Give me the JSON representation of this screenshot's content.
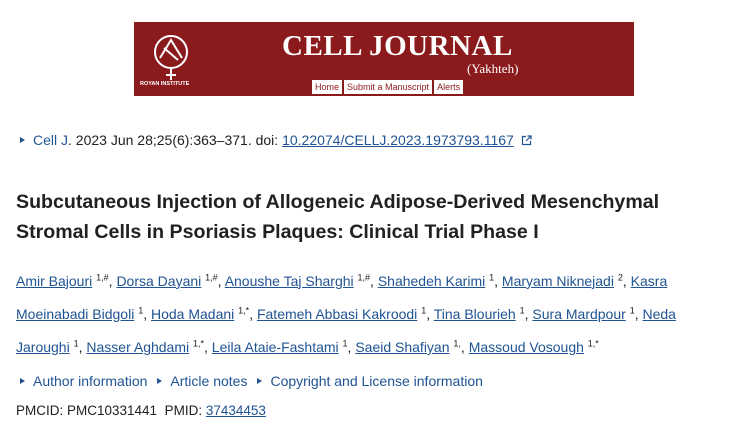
{
  "banner": {
    "institute": "ROYAN INSTITUTE",
    "title": "CELL JOURNAL",
    "subtitle": "(Yakhteh)",
    "nav": [
      "Home",
      "Submit a Manuscript",
      "Alerts"
    ]
  },
  "citation": {
    "journal": "Cell J",
    "details": ". 2023 Jun 28;25(6):363–371. doi: ",
    "doi": "10.22074/CELLJ.2023.1973793.1167"
  },
  "title": "Subcutaneous Injection of Allogeneic Adipose-Derived Mesenchymal Stromal Cells in Psoriasis Plaques: Clinical Trial Phase I",
  "authors": {
    "separator": ",",
    "list": [
      {
        "name": "Amir Bajouri",
        "sup": "1,#"
      },
      {
        "name": "Dorsa Dayani",
        "sup": "1,#"
      },
      {
        "name": "Anoushe Taj Sharghi",
        "sup": "1,#"
      },
      {
        "name": "Shahedeh Karimi",
        "sup": "1"
      },
      {
        "name": "Maryam Niknejadi",
        "sup": "2"
      },
      {
        "name": "Kasra Moeinabadi Bidgoli",
        "sup": "1"
      },
      {
        "name": "Hoda Madani",
        "sup": "1,*"
      },
      {
        "name": "Fatemeh Abbasi Kakroodi",
        "sup": "1"
      },
      {
        "name": "Tina Blourieh",
        "sup": "1"
      },
      {
        "name": "Sura Mardpour",
        "sup": "1"
      },
      {
        "name": "Neda Jaroughi",
        "sup": "1"
      },
      {
        "name": "Nasser Aghdami",
        "sup": "1,*"
      },
      {
        "name": "Leila Ataie-Fashtami",
        "sup": "1"
      },
      {
        "name": "Saeid Shafiyan",
        "sup": "1,"
      },
      {
        "name": "Massoud Vosough",
        "sup": "1,*"
      }
    ]
  },
  "links": [
    "Author information",
    "Article notes",
    "Copyright and License information"
  ],
  "ids": {
    "pmcid": "PMCID: PMC10331441",
    "pmid_label": "PMID:",
    "pmid": "37434453"
  }
}
